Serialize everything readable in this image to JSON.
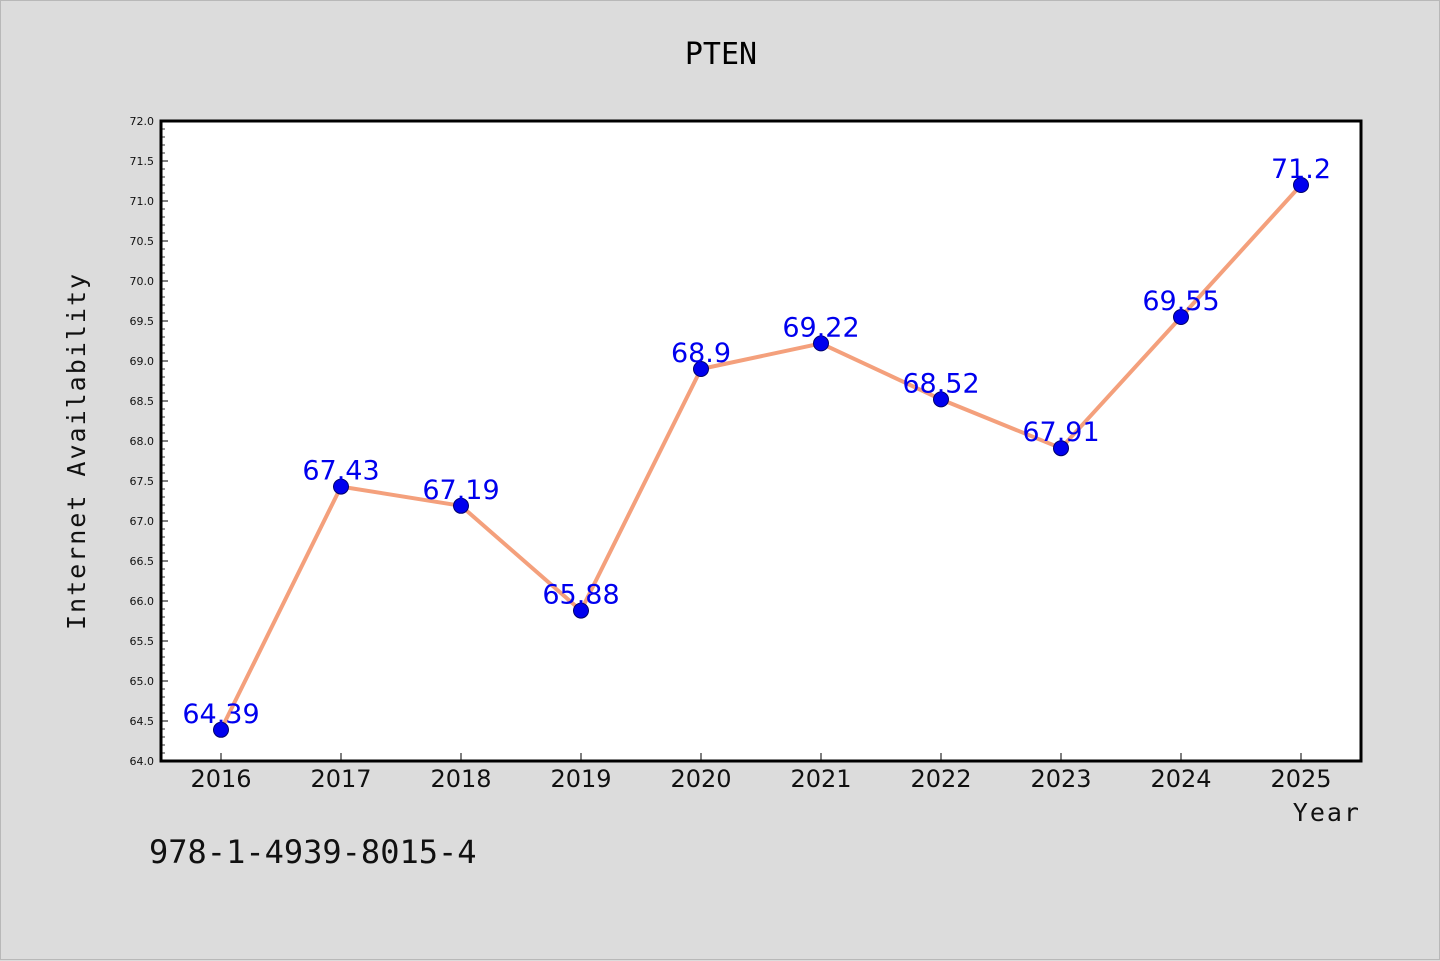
{
  "chart_data": {
    "type": "line",
    "title": "PTEN",
    "xlabel": "Year",
    "ylabel": "Internet Availability",
    "x": [
      "2016",
      "2017",
      "2018",
      "2019",
      "2020",
      "2021",
      "2022",
      "2023",
      "2024",
      "2025"
    ],
    "series": [
      {
        "values": [
          64.39,
          67.43,
          67.19,
          65.88,
          68.9,
          69.22,
          68.52,
          67.91,
          69.55,
          71.2
        ],
        "data_labels": [
          "64.39",
          "67.43",
          "67.19",
          "65.88",
          "68.9",
          "69.22",
          "68.52",
          "67.91",
          "69.55",
          "71.2"
        ],
        "line_color": "#f4a07c",
        "marker_color": "#0000ee"
      }
    ],
    "ylim": [
      64.0,
      72.0
    ],
    "yticks": [
      "64.0",
      "64.5",
      "65.0",
      "65.5",
      "66.0",
      "66.5",
      "67.0",
      "67.5",
      "68.0",
      "68.5",
      "69.0",
      "69.5",
      "70.0",
      "70.5",
      "71.0",
      "71.5",
      "72.0"
    ],
    "grid": false,
    "legend": "none"
  },
  "footer": {
    "isbn": "978-1-4939-8015-4"
  }
}
